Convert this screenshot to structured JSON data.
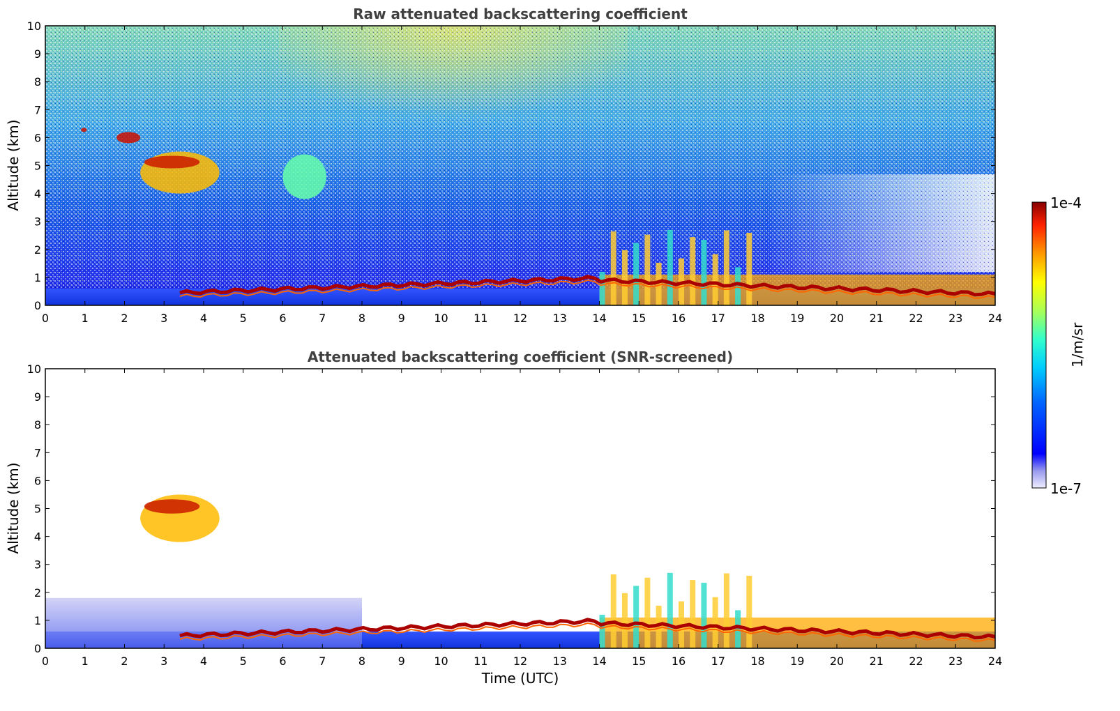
{
  "chart_data": [
    {
      "type": "heatmap",
      "title": "Raw attenuated backscattering coefficient",
      "xlabel": "",
      "ylabel": "Altitude (km)",
      "xlim": [
        0,
        24
      ],
      "ylim": [
        0,
        10
      ],
      "x_ticks": [
        "0",
        "1",
        "2",
        "3",
        "4",
        "5",
        "6",
        "7",
        "8",
        "9",
        "10",
        "11",
        "12",
        "13",
        "14",
        "15",
        "16",
        "17",
        "18",
        "19",
        "20",
        "21",
        "22",
        "23",
        "24"
      ],
      "y_ticks": [
        "0",
        "1",
        "2",
        "3",
        "4",
        "5",
        "6",
        "7",
        "8",
        "9",
        "10"
      ],
      "grid": false,
      "features": [
        {
          "kind": "boundary_layer_top",
          "time": [
            3.4,
            24
          ],
          "altitude_km": [
            0.4,
            1.0
          ],
          "level": "max"
        },
        {
          "kind": "mid_level_cloud",
          "time": [
            2.4,
            4.4
          ],
          "altitude_km": [
            4.0,
            5.5
          ],
          "level": "high"
        },
        {
          "kind": "small_cloud",
          "time": [
            0.9,
            1.05
          ],
          "altitude_km": [
            6.2,
            6.35
          ],
          "level": "max"
        },
        {
          "kind": "small_cloud",
          "time": [
            1.8,
            2.4
          ],
          "altitude_km": [
            5.8,
            6.2
          ],
          "level": "max"
        },
        {
          "kind": "cloud",
          "time": [
            6.0,
            7.1
          ],
          "altitude_km": [
            3.8,
            5.4
          ],
          "level": "mid"
        },
        {
          "kind": "convective_mixing",
          "time": [
            14,
            18
          ],
          "altitude_km": [
            0,
            2.8
          ],
          "level": "high"
        },
        {
          "kind": "noise_background",
          "time": [
            0,
            24
          ],
          "altitude_km": [
            1,
            10
          ],
          "level": "low-mid"
        }
      ]
    },
    {
      "type": "heatmap",
      "title": "Attenuated backscattering coefficient (SNR-screened)",
      "xlabel": "Time (UTC)",
      "ylabel": "Altitude (km)",
      "xlim": [
        0,
        24
      ],
      "ylim": [
        0,
        10
      ],
      "x_ticks": [
        "0",
        "1",
        "2",
        "3",
        "4",
        "5",
        "6",
        "7",
        "8",
        "9",
        "10",
        "11",
        "12",
        "13",
        "14",
        "15",
        "16",
        "17",
        "18",
        "19",
        "20",
        "21",
        "22",
        "23",
        "24"
      ],
      "y_ticks": [
        "0",
        "1",
        "2",
        "3",
        "4",
        "5",
        "6",
        "7",
        "8",
        "9",
        "10"
      ],
      "grid": false,
      "features": [
        {
          "kind": "boundary_layer_top",
          "time": [
            3.4,
            24
          ],
          "altitude_km": [
            0.4,
            1.0
          ],
          "level": "max"
        },
        {
          "kind": "mid_level_cloud",
          "time": [
            2.4,
            4.4
          ],
          "altitude_km": [
            3.8,
            5.5
          ],
          "level": "high"
        },
        {
          "kind": "convective_mixing",
          "time": [
            14,
            18
          ],
          "altitude_km": [
            0,
            2.8
          ],
          "level": "high"
        },
        {
          "kind": "aerosol_layer",
          "time": [
            0,
            8
          ],
          "altitude_km": [
            0,
            1.8
          ],
          "level": "low"
        }
      ]
    }
  ],
  "colorbar": {
    "label": "1/m/sr",
    "max_label": "1e-4",
    "min_label": "1e-7",
    "colormap": "jet"
  }
}
